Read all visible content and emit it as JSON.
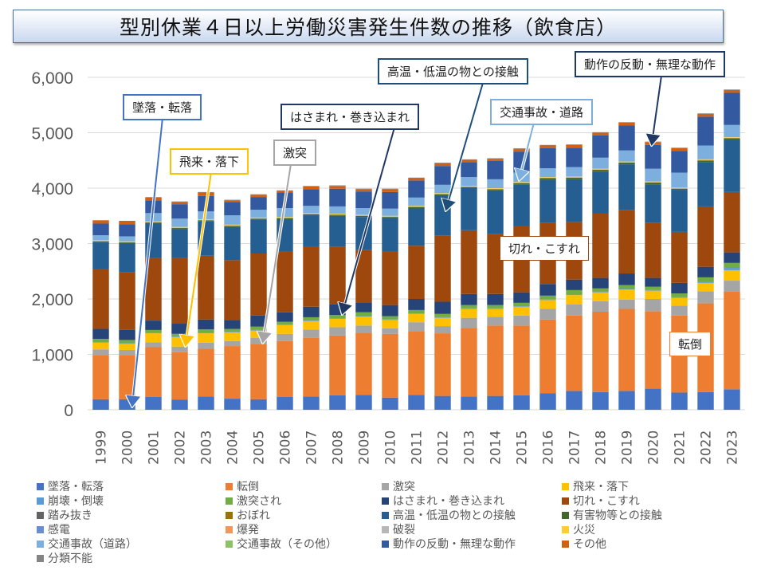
{
  "title": "型別休業４日以上労働災害発生件数の推移（飲食店）",
  "chart_data": {
    "type": "bar",
    "stacked": true,
    "title": "型別休業４日以上労働災害発生件数の推移（飲食店）",
    "xlabel": "",
    "ylabel": "",
    "ylim": [
      0,
      6000
    ],
    "yticks": [
      0,
      1000,
      2000,
      3000,
      4000,
      5000,
      6000
    ],
    "ytick_labels": [
      "0",
      "1,000",
      "2,000",
      "3,000",
      "4,000",
      "5,000",
      "6,000"
    ],
    "grid": true,
    "legend_position": "bottom",
    "categories": [
      "1999",
      "2000",
      "2001",
      "2002",
      "2003",
      "2004",
      "2005",
      "2006",
      "2007",
      "2008",
      "2009",
      "2010",
      "2011",
      "2012",
      "2013",
      "2014",
      "2015",
      "2016",
      "2017",
      "2018",
      "2019",
      "2020",
      "2021",
      "2022",
      "2023"
    ],
    "series": [
      {
        "name": "墜落・転落",
        "color": "#4472c4",
        "values": [
          190,
          190,
          230,
          180,
          240,
          200,
          190,
          230,
          240,
          260,
          270,
          220,
          270,
          250,
          240,
          250,
          260,
          300,
          340,
          320,
          340,
          380,
          310,
          320,
          370
        ]
      },
      {
        "name": "転倒",
        "color": "#ed7d31",
        "values": [
          800,
          800,
          900,
          860,
          860,
          950,
          1000,
          1010,
          1060,
          1080,
          1120,
          1150,
          1150,
          1130,
          1240,
          1270,
          1260,
          1330,
          1360,
          1450,
          1480,
          1400,
          1390,
          1600,
          1760
        ]
      },
      {
        "name": "激突",
        "color": "#a5a5a5",
        "values": [
          100,
          90,
          90,
          100,
          110,
          90,
          110,
          130,
          150,
          150,
          130,
          100,
          160,
          130,
          180,
          160,
          180,
          190,
          200,
          190,
          170,
          220,
          180,
          220,
          200
        ]
      },
      {
        "name": "飛来・落下",
        "color": "#ffc000",
        "values": [
          120,
          110,
          160,
          170,
          170,
          160,
          130,
          160,
          150,
          150,
          160,
          150,
          150,
          150,
          160,
          140,
          160,
          160,
          170,
          160,
          180,
          150,
          140,
          150,
          190
        ]
      },
      {
        "name": "崩壊・倒壊",
        "color": "#5b9bd5",
        "values": [
          10,
          10,
          10,
          10,
          10,
          10,
          10,
          10,
          10,
          10,
          10,
          10,
          10,
          10,
          10,
          10,
          10,
          10,
          10,
          10,
          10,
          10,
          10,
          20,
          40
        ]
      },
      {
        "name": "激突され",
        "color": "#70ad47",
        "values": [
          60,
          60,
          50,
          50,
          60,
          50,
          60,
          50,
          60,
          60,
          70,
          60,
          60,
          60,
          60,
          60,
          60,
          70,
          80,
          60,
          70,
          60,
          70,
          80,
          90
        ]
      },
      {
        "name": "はさまれ・巻き込まれ",
        "color": "#264478",
        "values": [
          180,
          180,
          170,
          190,
          180,
          160,
          200,
          170,
          190,
          190,
          180,
          200,
          200,
          220,
          200,
          200,
          190,
          210,
          190,
          190,
          210,
          160,
          190,
          190,
          190
        ]
      },
      {
        "name": "切れ・こすれ",
        "color": "#9e480e",
        "values": [
          1080,
          1040,
          1130,
          1180,
          1150,
          1080,
          1120,
          1090,
          1090,
          1040,
          940,
          960,
          960,
          1190,
          1150,
          1080,
          1190,
          1110,
          1040,
          1160,
          1150,
          990,
          920,
          1090,
          1090
        ]
      },
      {
        "name": "踏み抜き",
        "color": "#636363",
        "values": [
          0,
          0,
          0,
          0,
          0,
          0,
          0,
          0,
          0,
          0,
          0,
          0,
          0,
          0,
          0,
          0,
          0,
          0,
          0,
          0,
          0,
          0,
          0,
          0,
          0
        ]
      },
      {
        "name": "おぼれ",
        "color": "#997300",
        "values": [
          0,
          0,
          0,
          0,
          0,
          0,
          0,
          0,
          0,
          0,
          0,
          0,
          0,
          0,
          0,
          0,
          0,
          0,
          0,
          0,
          0,
          0,
          0,
          0,
          0
        ]
      },
      {
        "name": "高温・低温の物との接触",
        "color": "#255e91",
        "values": [
          480,
          520,
          620,
          520,
          620,
          600,
          610,
          590,
          560,
          560,
          600,
          610,
          680,
          730,
          760,
          790,
          750,
          770,
          770,
          760,
          820,
          700,
          760,
          800,
          940
        ]
      },
      {
        "name": "有害物等との接触",
        "color": "#43682b",
        "values": [
          20,
          20,
          20,
          20,
          20,
          20,
          20,
          20,
          20,
          20,
          20,
          20,
          20,
          20,
          20,
          20,
          30,
          30,
          30,
          30,
          30,
          30,
          20,
          30,
          30
        ]
      },
      {
        "name": "感電",
        "color": "#698ed0",
        "values": [
          0,
          0,
          0,
          0,
          0,
          0,
          0,
          0,
          0,
          0,
          0,
          0,
          0,
          0,
          0,
          0,
          0,
          0,
          0,
          0,
          0,
          0,
          0,
          0,
          0
        ]
      },
      {
        "name": "爆発",
        "color": "#f1975a",
        "values": [
          0,
          0,
          0,
          0,
          0,
          0,
          0,
          0,
          0,
          0,
          0,
          0,
          0,
          0,
          0,
          0,
          0,
          0,
          0,
          0,
          0,
          0,
          0,
          0,
          0
        ]
      },
      {
        "name": "破裂",
        "color": "#b7b7b7",
        "values": [
          10,
          10,
          10,
          10,
          10,
          10,
          10,
          10,
          10,
          10,
          10,
          10,
          10,
          10,
          10,
          10,
          10,
          10,
          10,
          10,
          10,
          10,
          10,
          10,
          10
        ]
      },
      {
        "name": "火災",
        "color": "#ffcd33",
        "values": [
          10,
          10,
          10,
          10,
          10,
          10,
          10,
          10,
          10,
          10,
          10,
          10,
          10,
          10,
          10,
          10,
          10,
          10,
          10,
          10,
          10,
          10,
          10,
          10,
          10
        ]
      },
      {
        "name": "交通事故（道路）",
        "color": "#7cafdd",
        "values": [
          90,
          90,
          150,
          150,
          140,
          170,
          140,
          160,
          130,
          130,
          120,
          130,
          150,
          150,
          160,
          160,
          170,
          160,
          170,
          200,
          200,
          230,
          270,
          250,
          220
        ]
      },
      {
        "name": "交通事故（その他）",
        "color": "#8cc168",
        "values": [
          0,
          0,
          0,
          0,
          0,
          0,
          0,
          0,
          0,
          0,
          0,
          0,
          0,
          0,
          0,
          0,
          0,
          0,
          0,
          0,
          0,
          0,
          0,
          0,
          0
        ]
      },
      {
        "name": "動作の反動・無理な動作",
        "color": "#335aa1",
        "values": [
          210,
          220,
          230,
          260,
          280,
          240,
          230,
          280,
          300,
          320,
          300,
          300,
          310,
          340,
          270,
          330,
          380,
          360,
          350,
          400,
          450,
          430,
          390,
          520,
          580
        ]
      },
      {
        "name": "その他",
        "color": "#d26012",
        "values": [
          60,
          60,
          50,
          40,
          60,
          30,
          40,
          30,
          50,
          50,
          40,
          50,
          40,
          50,
          40,
          40,
          50,
          50,
          50,
          50,
          50,
          50,
          50,
          50,
          50
        ]
      },
      {
        "name": "分類不能",
        "color": "#848484",
        "values": [
          0,
          0,
          10,
          10,
          10,
          10,
          10,
          10,
          10,
          10,
          10,
          10,
          10,
          10,
          10,
          10,
          10,
          10,
          10,
          10,
          10,
          10,
          10,
          10,
          10
        ]
      }
    ],
    "annotations": [
      {
        "text": "墜落・転落",
        "target_series": "墜落・転落",
        "target_category": "2000",
        "border_color": "#4472c4"
      },
      {
        "text": "飛来・落下",
        "target_series": "飛来・落下",
        "target_category": "2002",
        "border_color": "#ffc000"
      },
      {
        "text": "激突",
        "target_series": "激突",
        "target_category": "2005",
        "border_color": "#a5a5a5"
      },
      {
        "text": "はさまれ・巻き込まれ",
        "target_series": "はさまれ・巻き込まれ",
        "target_category": "2008",
        "border_color": "#1f3864"
      },
      {
        "text": "高温・低温の物との接触",
        "target_series": "高温・低温の物との接触",
        "target_category": "2012",
        "border_color": "#1f4e79"
      },
      {
        "text": "交通事故・道路",
        "target_series": "交通事故（道路）",
        "target_category": "2015",
        "border_color": "#7cafdd"
      },
      {
        "text": "動作の反動・無理な動作",
        "target_series": "動作の反動・無理な動作",
        "target_category": "2020",
        "border_color": "#1f3864"
      },
      {
        "text": "切れ・こすれ",
        "target_series": "切れ・こすれ",
        "target_category": "2015",
        "border_color": "#9e480e"
      },
      {
        "text": "転倒",
        "target_series": "転倒",
        "target_category": "2021",
        "border_color": "#ed7d31"
      }
    ]
  }
}
